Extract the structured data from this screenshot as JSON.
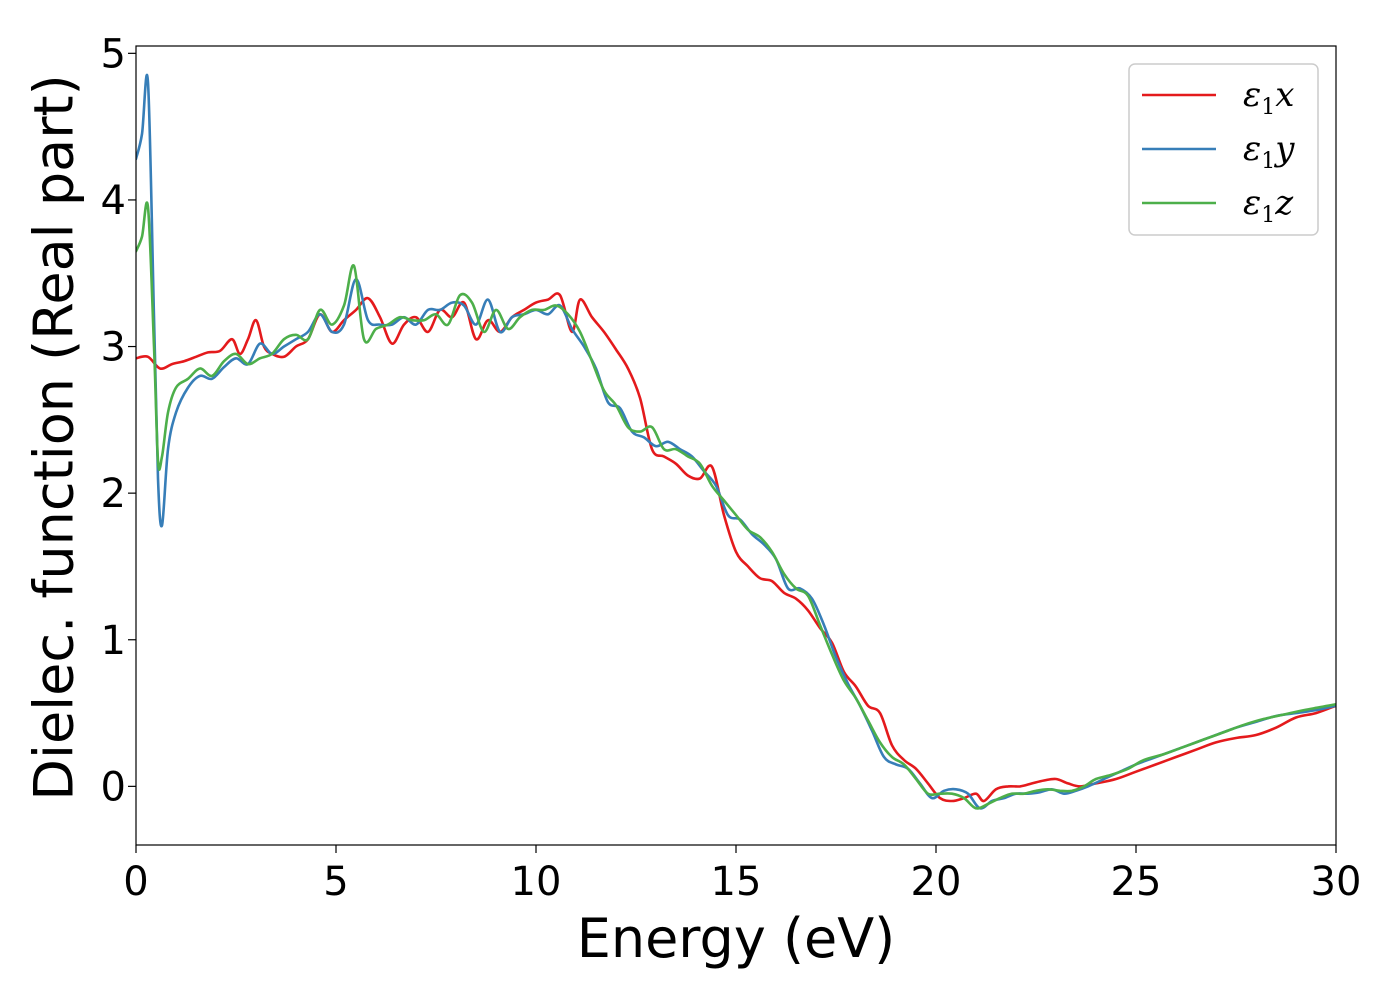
{
  "chart_data": {
    "type": "line",
    "xlabel": "Energy (eV)",
    "ylabel": "Dielec. function (Real part)",
    "xlim": [
      0,
      30
    ],
    "ylim": [
      -0.4,
      5.05
    ],
    "xticks": [
      0,
      5,
      10,
      15,
      20,
      25,
      30
    ],
    "yticks": [
      0,
      1,
      2,
      3,
      4,
      5
    ],
    "grid": false,
    "legend_position": "top-right",
    "series": [
      {
        "name": "ε1x",
        "legend_base": "ε",
        "legend_sub": "1",
        "legend_suffix": "x",
        "color": "#e41a1c",
        "x": [
          0,
          0.3,
          0.6,
          0.9,
          1.2,
          1.5,
          1.8,
          2.1,
          2.4,
          2.6,
          2.8,
          3.0,
          3.2,
          3.4,
          3.7,
          4.0,
          4.3,
          4.6,
          4.9,
          5.2,
          5.5,
          5.8,
          6.1,
          6.4,
          6.7,
          7.0,
          7.3,
          7.6,
          7.9,
          8.2,
          8.5,
          8.8,
          9.1,
          9.4,
          9.7,
          10.0,
          10.3,
          10.6,
          10.9,
          11.1,
          11.4,
          11.7,
          12.0,
          12.3,
          12.6,
          12.9,
          13.2,
          13.5,
          13.8,
          14.1,
          14.4,
          14.7,
          15.0,
          15.3,
          15.6,
          15.9,
          16.2,
          16.5,
          16.8,
          17.1,
          17.4,
          17.7,
          18.0,
          18.3,
          18.6,
          18.9,
          19.2,
          19.5,
          19.8,
          20.1,
          20.4,
          20.7,
          21.0,
          21.2,
          21.5,
          21.8,
          22.1,
          22.4,
          22.7,
          23.0,
          23.3,
          23.6,
          24.0,
          24.5,
          25.0,
          25.5,
          26.0,
          26.5,
          27.0,
          27.5,
          28.0,
          28.5,
          29.0,
          29.5,
          30.0
        ],
        "y": [
          2.92,
          2.93,
          2.85,
          2.88,
          2.9,
          2.93,
          2.96,
          2.97,
          3.05,
          2.95,
          3.05,
          3.18,
          3.0,
          2.95,
          2.93,
          3.0,
          3.05,
          3.22,
          3.1,
          3.18,
          3.25,
          3.33,
          3.2,
          3.02,
          3.15,
          3.2,
          3.1,
          3.25,
          3.2,
          3.3,
          3.05,
          3.18,
          3.1,
          3.2,
          3.25,
          3.3,
          3.32,
          3.35,
          3.1,
          3.32,
          3.2,
          3.1,
          2.98,
          2.85,
          2.65,
          2.3,
          2.25,
          2.2,
          2.12,
          2.1,
          2.18,
          1.85,
          1.6,
          1.5,
          1.42,
          1.4,
          1.32,
          1.28,
          1.2,
          1.08,
          0.98,
          0.78,
          0.68,
          0.55,
          0.5,
          0.28,
          0.18,
          0.12,
          0.02,
          -0.08,
          -0.1,
          -0.08,
          -0.05,
          -0.1,
          -0.02,
          0.0,
          0.0,
          0.02,
          0.04,
          0.05,
          0.02,
          0.0,
          0.02,
          0.05,
          0.1,
          0.15,
          0.2,
          0.25,
          0.3,
          0.33,
          0.35,
          0.4,
          0.47,
          0.5,
          0.55
        ]
      },
      {
        "name": "ε1y",
        "legend_base": "ε",
        "legend_sub": "1",
        "legend_suffix": "y",
        "color": "#377eb8",
        "x": [
          0,
          0.15,
          0.3,
          0.45,
          0.55,
          0.65,
          0.8,
          1.0,
          1.3,
          1.6,
          1.9,
          2.2,
          2.5,
          2.8,
          3.1,
          3.4,
          3.7,
          4.0,
          4.3,
          4.6,
          4.9,
          5.2,
          5.5,
          5.8,
          6.1,
          6.4,
          6.7,
          7.0,
          7.3,
          7.6,
          7.9,
          8.2,
          8.5,
          8.8,
          9.1,
          9.4,
          9.7,
          10.0,
          10.3,
          10.6,
          10.9,
          11.2,
          11.5,
          11.8,
          12.1,
          12.4,
          12.7,
          13.0,
          13.3,
          13.6,
          13.9,
          14.2,
          14.5,
          14.8,
          15.1,
          15.4,
          15.7,
          16.0,
          16.3,
          16.6,
          16.9,
          17.2,
          17.5,
          17.8,
          18.1,
          18.4,
          18.7,
          19.0,
          19.3,
          19.6,
          19.9,
          20.2,
          20.5,
          20.8,
          21.1,
          21.4,
          21.7,
          22.0,
          22.3,
          22.6,
          22.9,
          23.2,
          23.5,
          23.8,
          24.2,
          24.6,
          25.0,
          25.5,
          26.0,
          26.5,
          27.0,
          27.5,
          28.0,
          28.5,
          29.0,
          29.5,
          30.0
        ],
        "y": [
          4.28,
          4.45,
          4.8,
          3.2,
          2.1,
          1.78,
          2.3,
          2.55,
          2.72,
          2.8,
          2.78,
          2.86,
          2.92,
          2.88,
          3.02,
          2.95,
          3.0,
          3.05,
          3.1,
          3.22,
          3.1,
          3.15,
          3.46,
          3.18,
          3.15,
          3.15,
          3.2,
          3.15,
          3.25,
          3.25,
          3.3,
          3.28,
          3.15,
          3.32,
          3.1,
          3.2,
          3.22,
          3.25,
          3.22,
          3.28,
          3.12,
          3.0,
          2.85,
          2.62,
          2.58,
          2.42,
          2.38,
          2.32,
          2.35,
          2.3,
          2.25,
          2.15,
          2.05,
          1.85,
          1.82,
          1.72,
          1.65,
          1.55,
          1.35,
          1.35,
          1.28,
          1.1,
          0.88,
          0.7,
          0.55,
          0.38,
          0.2,
          0.15,
          0.12,
          0.02,
          -0.08,
          -0.03,
          -0.02,
          -0.05,
          -0.15,
          -0.1,
          -0.08,
          -0.05,
          -0.05,
          -0.04,
          -0.02,
          -0.05,
          -0.03,
          0.0,
          0.05,
          0.1,
          0.15,
          0.2,
          0.25,
          0.3,
          0.35,
          0.4,
          0.44,
          0.48,
          0.5,
          0.52,
          0.55
        ]
      },
      {
        "name": "ε1z",
        "legend_base": "ε",
        "legend_sub": "1",
        "legend_suffix": "z",
        "color": "#4daf4a",
        "x": [
          0,
          0.15,
          0.3,
          0.45,
          0.55,
          0.65,
          0.8,
          1.0,
          1.3,
          1.6,
          1.9,
          2.2,
          2.5,
          2.8,
          3.1,
          3.4,
          3.7,
          4.0,
          4.3,
          4.6,
          4.9,
          5.2,
          5.45,
          5.7,
          6.0,
          6.3,
          6.6,
          6.9,
          7.2,
          7.5,
          7.8,
          8.1,
          8.4,
          8.7,
          9.0,
          9.3,
          9.6,
          9.9,
          10.2,
          10.5,
          10.8,
          11.1,
          11.4,
          11.7,
          12.0,
          12.3,
          12.6,
          12.9,
          13.2,
          13.5,
          13.8,
          14.1,
          14.4,
          14.7,
          15.0,
          15.3,
          15.6,
          15.9,
          16.2,
          16.5,
          16.8,
          17.1,
          17.4,
          17.7,
          18.0,
          18.3,
          18.6,
          18.9,
          19.2,
          19.5,
          19.8,
          20.1,
          20.4,
          20.7,
          21.0,
          21.3,
          21.6,
          21.9,
          22.2,
          22.5,
          22.8,
          23.1,
          23.4,
          23.7,
          24.0,
          24.4,
          24.8,
          25.2,
          25.7,
          26.2,
          26.7,
          27.2,
          27.7,
          28.2,
          28.7,
          29.2,
          29.6,
          30.0
        ],
        "y": [
          3.65,
          3.75,
          3.95,
          3.0,
          2.22,
          2.25,
          2.55,
          2.72,
          2.78,
          2.85,
          2.8,
          2.9,
          2.95,
          2.88,
          2.92,
          2.95,
          3.05,
          3.08,
          3.05,
          3.25,
          3.15,
          3.28,
          3.55,
          3.05,
          3.12,
          3.15,
          3.2,
          3.18,
          3.18,
          3.22,
          3.15,
          3.35,
          3.3,
          3.1,
          3.25,
          3.12,
          3.2,
          3.25,
          3.25,
          3.28,
          3.22,
          3.1,
          2.9,
          2.7,
          2.6,
          2.45,
          2.42,
          2.45,
          2.3,
          2.3,
          2.25,
          2.2,
          2.05,
          1.95,
          1.85,
          1.75,
          1.7,
          1.6,
          1.45,
          1.35,
          1.3,
          1.1,
          0.9,
          0.72,
          0.6,
          0.45,
          0.3,
          0.2,
          0.15,
          0.05,
          -0.05,
          -0.05,
          -0.05,
          -0.08,
          -0.15,
          -0.12,
          -0.08,
          -0.05,
          -0.05,
          -0.03,
          -0.02,
          -0.03,
          -0.03,
          0.0,
          0.05,
          0.08,
          0.12,
          0.18,
          0.22,
          0.27,
          0.32,
          0.37,
          0.42,
          0.46,
          0.49,
          0.52,
          0.54,
          0.56
        ]
      }
    ]
  }
}
